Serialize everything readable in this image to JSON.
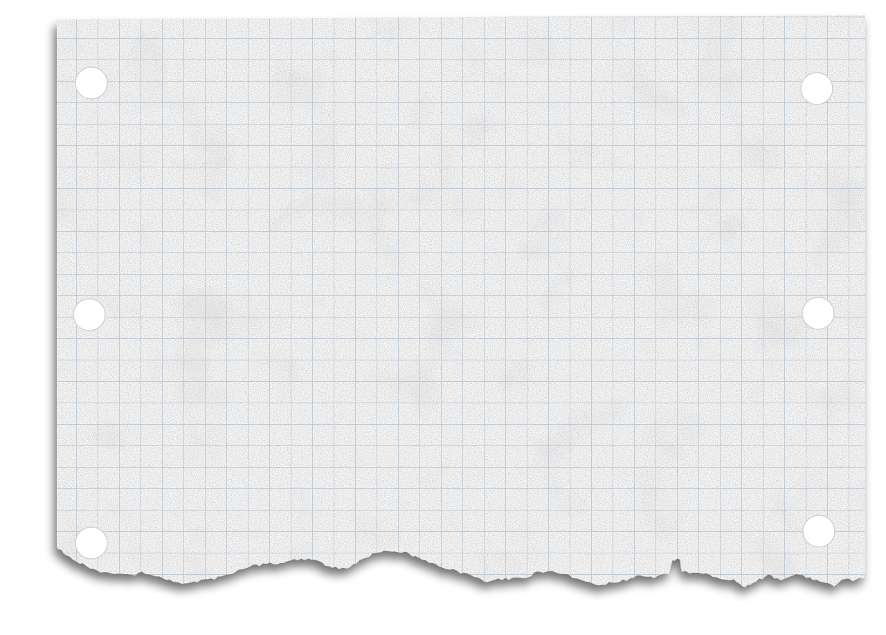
{
  "paper": {
    "color": "#fbfbfb",
    "grid_color": "#a9bccc",
    "speckle_color": "#8f8f8f",
    "background": "#ffffff",
    "punch_holes": 6,
    "torn_edge": "bottom"
  }
}
